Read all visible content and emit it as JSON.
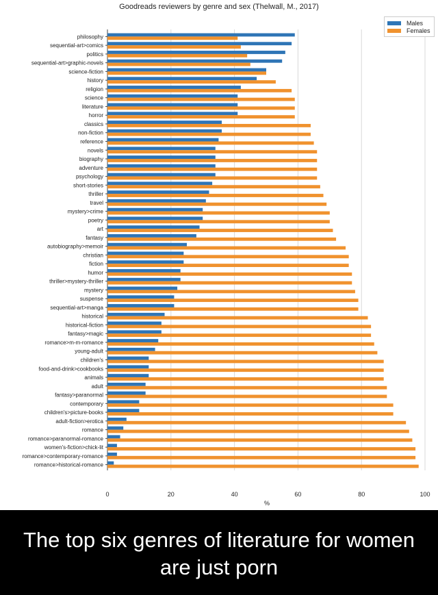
{
  "chart_data": {
    "type": "bar",
    "orientation": "horizontal",
    "title": "Goodreads reviewers by genre and sex (Thelwall, M., 2017)",
    "xlabel": "%",
    "ylabel": "",
    "xlim": [
      0,
      100
    ],
    "x_ticks": [
      "0",
      "20",
      "40",
      "60",
      "80",
      "100"
    ],
    "grid": "vertical",
    "legend_position": "top-right",
    "categories": [
      "philosophy",
      "sequential-art>comics",
      "politics",
      "sequential-art>graphic-novels",
      "science-fiction",
      "history",
      "religion",
      "science",
      "literature",
      "horror",
      "classics",
      "non-fiction",
      "reference",
      "novels",
      "biography",
      "adventure",
      "psychology",
      "short-stories",
      "thriller",
      "travel",
      "mystery>crime",
      "poetry",
      "art",
      "fantasy",
      "autobiography>memoir",
      "christian",
      "fiction",
      "humor",
      "thriller>mystery-thriller",
      "mystery",
      "suspense",
      "sequential-art>manga",
      "historical",
      "historical-fiction",
      "fantasy>magic",
      "romance>m-m-romance",
      "young-adult",
      "children's",
      "food-and-drink>cookbooks",
      "animals",
      "adult",
      "fantasy>paranormal",
      "contemporary",
      "children's>picture-books",
      "adult-fiction>erotica",
      "romance",
      "romance>paranormal-romance",
      "women's-fiction>chick-lit",
      "romance>contemporary-romance",
      "romance>historical-romance"
    ],
    "series": [
      {
        "name": "Males",
        "color": "#2e75b6",
        "values": [
          59,
          58,
          56,
          55,
          50,
          47,
          42,
          41,
          41,
          41,
          36,
          36,
          35,
          34,
          34,
          34,
          34,
          33,
          32,
          31,
          30,
          30,
          29,
          28,
          25,
          24,
          24,
          23,
          23,
          22,
          21,
          21,
          18,
          17,
          17,
          16,
          15,
          13,
          13,
          13,
          12,
          12,
          10,
          10,
          6,
          5,
          4,
          3,
          3,
          2
        ]
      },
      {
        "name": "Females",
        "color": "#f0922e",
        "values": [
          41,
          42,
          44,
          45,
          50,
          53,
          58,
          59,
          59,
          59,
          64,
          64,
          65,
          66,
          66,
          66,
          66,
          67,
          68,
          69,
          70,
          70,
          71,
          72,
          75,
          76,
          76,
          77,
          77,
          78,
          79,
          79,
          82,
          83,
          83,
          84,
          85,
          87,
          87,
          87,
          88,
          88,
          90,
          90,
          94,
          95,
          96,
          97,
          97,
          98
        ]
      }
    ]
  },
  "caption": {
    "text": "The top six genres of literature for women are just porn"
  }
}
